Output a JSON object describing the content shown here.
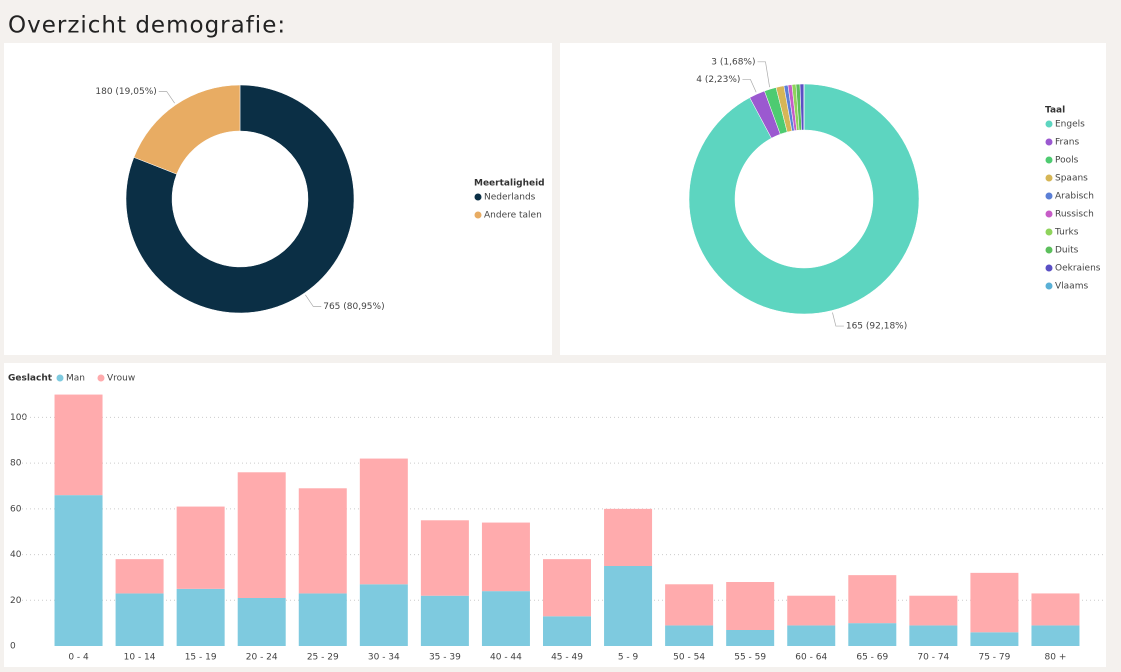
{
  "title": "Overzicht demografie:",
  "chart_data": [
    {
      "type": "donut",
      "legend_title": "Meertaligheid",
      "categories": [
        "Nederlands",
        "Andere talen"
      ],
      "values": [
        765,
        180
      ],
      "value_labels": [
        "765 (80,95%)",
        "180 (19,05%)"
      ],
      "colors": [
        "#0b2f45",
        "#e8ac63"
      ]
    },
    {
      "type": "donut",
      "legend_title": "Taal",
      "categories": [
        "Engels",
        "Frans",
        "Pools",
        "Spaans",
        "Arabisch",
        "Russisch",
        "Turks",
        "Duits",
        "Oekraiens",
        "Vlaams"
      ],
      "values": [
        165,
        4,
        3,
        2,
        1,
        1,
        1,
        1,
        1,
        0
      ],
      "value_labels": [
        "165 (92,18%)",
        "4 (2,23%)",
        "3 (1,68%)",
        null,
        null,
        null,
        null,
        null,
        null,
        null
      ],
      "colors": [
        "#5dd5c0",
        "#9b59d0",
        "#4ecb71",
        "#d6b656",
        "#5b7fd6",
        "#c75cc7",
        "#8fd35c",
        "#5cbf5c",
        "#5a4fc4",
        "#5ab0d6"
      ]
    },
    {
      "type": "stacked_bar",
      "legend_title": "Geslacht",
      "categories": [
        "0 - 4",
        "10 - 14",
        "15 - 19",
        "20 - 24",
        "25 - 29",
        "30 - 34",
        "35 - 39",
        "40 - 44",
        "45 - 49",
        "5 - 9",
        "50 - 54",
        "55 - 59",
        "60 - 64",
        "65 - 69",
        "70 - 74",
        "75 - 79",
        "80 +"
      ],
      "series": [
        {
          "name": "Man",
          "color": "#7ecadf",
          "values": [
            66,
            23,
            25,
            21,
            23,
            27,
            22,
            24,
            13,
            35,
            9,
            7,
            9,
            10,
            9,
            6,
            9
          ]
        },
        {
          "name": "Vrouw",
          "color": "#ffabad",
          "values": [
            44,
            15,
            36,
            55,
            46,
            55,
            33,
            30,
            25,
            25,
            18,
            21,
            13,
            21,
            13,
            26,
            14
          ]
        }
      ],
      "ylim": [
        0,
        112
      ],
      "yticks": [
        0,
        20,
        40,
        60,
        80,
        100
      ],
      "grid": true
    }
  ]
}
